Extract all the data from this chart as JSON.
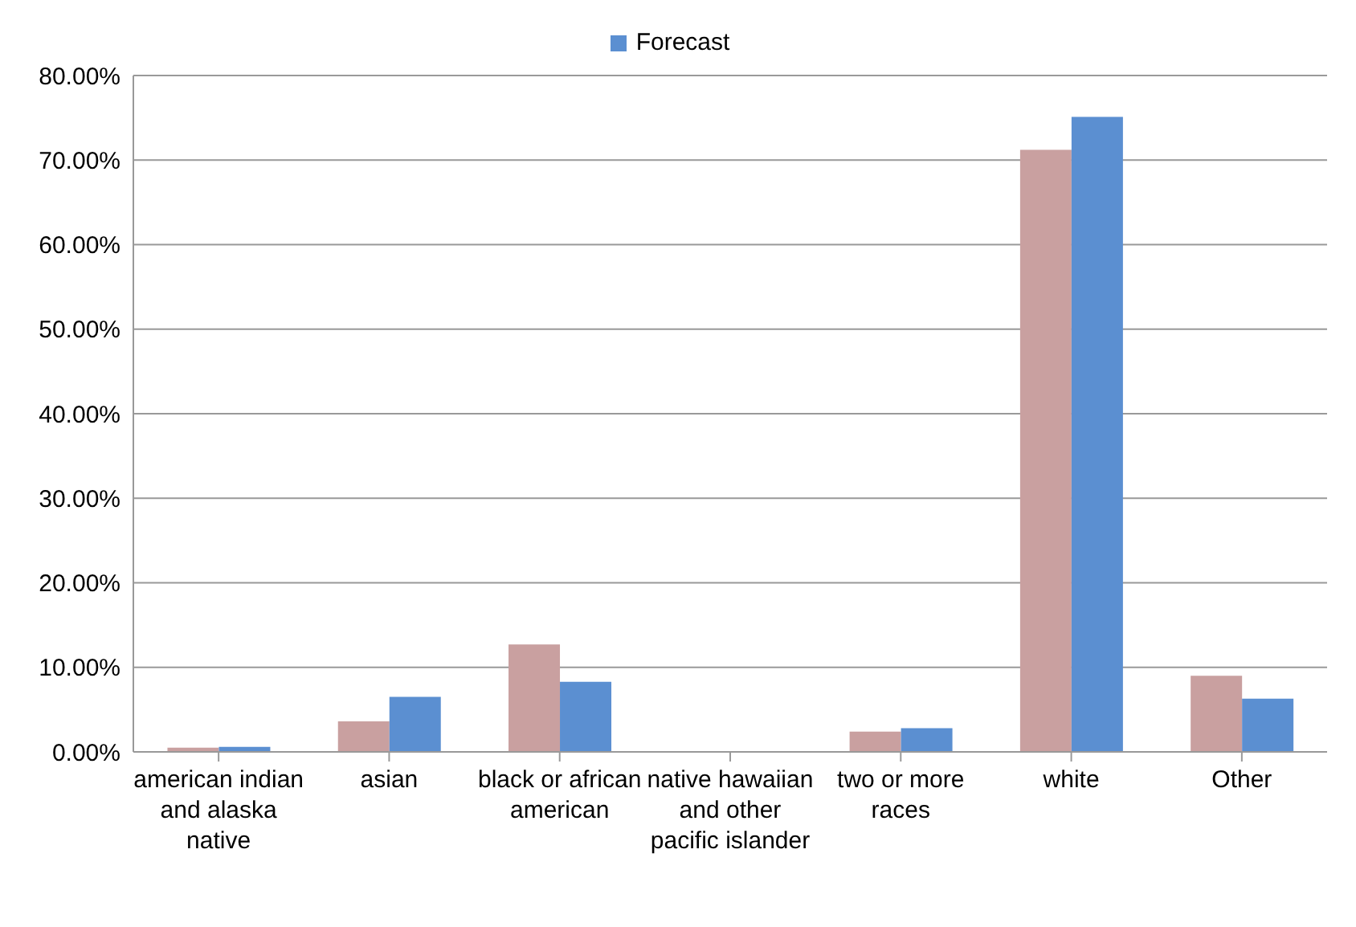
{
  "chart_data": {
    "type": "bar",
    "categories": [
      "american indian and alaska native",
      "asian",
      "black or african american",
      "native hawaiian and other pacific islander",
      "two or more races",
      "white",
      "Other"
    ],
    "series": [
      {
        "color": "#c9a0a0",
        "values": [
          0.5,
          3.6,
          12.7,
          0,
          2.4,
          71.2,
          9.0
        ]
      },
      {
        "name": "Forecast",
        "color": "#5b8fd1",
        "values": [
          0.6,
          6.5,
          8.3,
          0,
          2.8,
          75.1,
          6.3
        ]
      }
    ],
    "ylim": [
      0,
      80
    ],
    "yticks": [
      {
        "value": 0,
        "label": "0.00%"
      },
      {
        "value": 10,
        "label": "10.00%"
      },
      {
        "value": 20,
        "label": "20.00%"
      },
      {
        "value": 30,
        "label": "30.00%"
      },
      {
        "value": 40,
        "label": "40.00%"
      },
      {
        "value": 50,
        "label": "50.00%"
      },
      {
        "value": 60,
        "label": "60.00%"
      },
      {
        "value": 70,
        "label": "70.00%"
      },
      {
        "value": 80,
        "label": "80.00%"
      }
    ],
    "grid": "y",
    "legend": "top"
  }
}
